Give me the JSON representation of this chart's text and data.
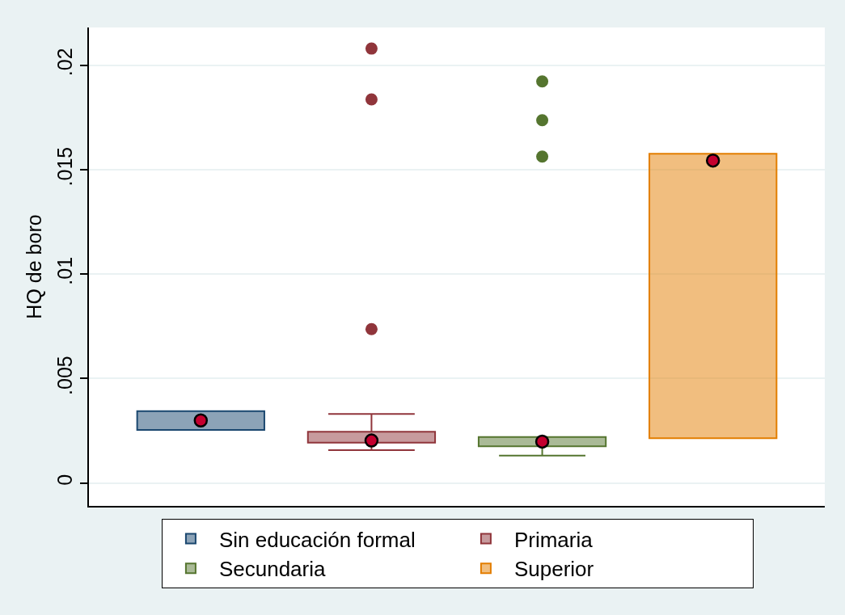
{
  "chart_data": {
    "type": "box",
    "ylabel": "HQ de boro",
    "categories": [
      null
    ],
    "ylim": [
      -0.0011,
      0.0218
    ],
    "yticks": [
      0,
      {
        "value": 0.005,
        "label": ".005"
      },
      {
        "value": 0.01,
        "label": ".01"
      },
      {
        "value": 0.015,
        "label": ".015"
      },
      {
        "value": 0.02,
        "label": ".02"
      }
    ],
    "grid": "y",
    "legend": "bottom",
    "marker": "circle",
    "series": [
      {
        "name": "Sin educación formal",
        "color": "#1a476f",
        "boxes": [
          {
            "low": 0.00254,
            "q1": 0.00254,
            "median": 0.00299,
            "q3": 0.00344,
            "high": 0.00344
          }
        ]
      },
      {
        "name": "Primaria",
        "color": "#90353b",
        "boxes": [
          {
            "low": 0.00157,
            "q1": 0.00193,
            "median": 0.00203,
            "q3": 0.00245,
            "high": 0.0033,
            "outliers": [
              0.02079,
              0.01836,
              0.00736
            ]
          }
        ]
      },
      {
        "name": "Secundaria",
        "color": "#55752f",
        "boxes": [
          {
            "low": 0.00131,
            "q1": 0.00175,
            "median": 0.00198,
            "q3": 0.0022,
            "high": 0.0022,
            "outliers": [
              0.01922,
              0.01736,
              0.01562
            ]
          }
        ]
      },
      {
        "name": "Superior",
        "color": "#e37e00",
        "boxes": [
          {
            "low": 0.00214,
            "q1": 0.00214,
            "median": 0.01543,
            "q3": 0.01576,
            "high": 0.01576
          }
        ]
      }
    ]
  }
}
